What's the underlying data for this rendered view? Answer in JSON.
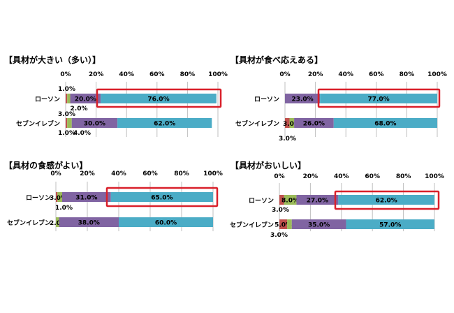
{
  "colors": {
    "red": "#C0504D",
    "green": "#9BBB59",
    "purple": "#8064A2",
    "teal": "#4BACC6",
    "highlight": "#D9202A",
    "grid": "#BFBFBF"
  },
  "tick_labels": [
    "0%",
    "20%",
    "40%",
    "60%",
    "80%",
    "100%"
  ],
  "chart_data": [
    {
      "type": "bar",
      "orientation": "horizontal-stacked",
      "title": "【具材が大きい（多い）】",
      "xlim": [
        0,
        100
      ],
      "categories": [
        "ローソン",
        "セブンイレブン"
      ],
      "series": [
        {
          "values": [
            1.0,
            1.0
          ],
          "labels": [
            "1.0%",
            "1.0%"
          ],
          "color": "#C0504D"
        },
        {
          "values": [
            2.0,
            3.0
          ],
          "labels": [
            "2.0%",
            "3.0%"
          ],
          "color": "#9BBB59"
        },
        {
          "values": [
            20.0,
            30.0
          ],
          "labels": [
            "20.0%",
            "30.0%"
          ],
          "color": "#8064A2"
        },
        {
          "values": [
            76.0,
            62.0
          ],
          "labels": [
            "76.0%",
            "62.0%"
          ],
          "color": "#4BACC6"
        }
      ],
      "extra_labels": [
        "4.0%"
      ]
    },
    {
      "type": "bar",
      "orientation": "horizontal-stacked",
      "title": "【具材が食べ応えある】",
      "xlim": [
        0,
        100
      ],
      "categories": [
        "ローソン",
        "セブンイレブン"
      ],
      "series": [
        {
          "values": [
            0,
            3.0
          ],
          "labels": [
            "",
            "3.0%"
          ],
          "color": "#C0504D"
        },
        {
          "values": [
            0,
            3.0
          ],
          "labels": [
            "",
            "3.0%"
          ],
          "color": "#9BBB59"
        },
        {
          "values": [
            23.0,
            26.0
          ],
          "labels": [
            "23.0%",
            "26.0%"
          ],
          "color": "#8064A2"
        },
        {
          "values": [
            77.0,
            68.0
          ],
          "labels": [
            "77.0%",
            "68.0%"
          ],
          "color": "#4BACC6"
        }
      ]
    },
    {
      "type": "bar",
      "orientation": "horizontal-stacked",
      "title": "【具材の食感がよい】",
      "xlim": [
        0,
        100
      ],
      "categories": [
        "ローソン",
        "セブンイレブン"
      ],
      "series": [
        {
          "values": [
            1.0,
            0
          ],
          "labels": [
            "1.0%",
            ""
          ],
          "color": "#C0504D"
        },
        {
          "values": [
            3.0,
            2.0
          ],
          "labels": [
            "3.0%",
            "2.0%"
          ],
          "color": "#9BBB59"
        },
        {
          "values": [
            31.0,
            38.0
          ],
          "labels": [
            "31.0%",
            "38.0%"
          ],
          "color": "#8064A2"
        },
        {
          "values": [
            65.0,
            60.0
          ],
          "labels": [
            "65.0%",
            "60.0%"
          ],
          "color": "#4BACC6"
        }
      ]
    },
    {
      "type": "bar",
      "orientation": "horizontal-stacked",
      "title": "【具材がおいしい】",
      "xlim": [
        0,
        100
      ],
      "categories": [
        "ローソン",
        "セブンイレブン"
      ],
      "series": [
        {
          "values": [
            3.0,
            5.0
          ],
          "labels": [
            "3.0%",
            "5.0%"
          ],
          "color": "#C0504D"
        },
        {
          "values": [
            8.0,
            3.0
          ],
          "labels": [
            "8.0%",
            "3.0%"
          ],
          "color": "#9BBB59"
        },
        {
          "values": [
            27.0,
            35.0
          ],
          "labels": [
            "27.0%",
            "35.0%"
          ],
          "color": "#8064A2"
        },
        {
          "values": [
            62.0,
            57.0
          ],
          "labels": [
            "62.0%",
            "57.0%"
          ],
          "color": "#4BACC6"
        }
      ]
    }
  ]
}
